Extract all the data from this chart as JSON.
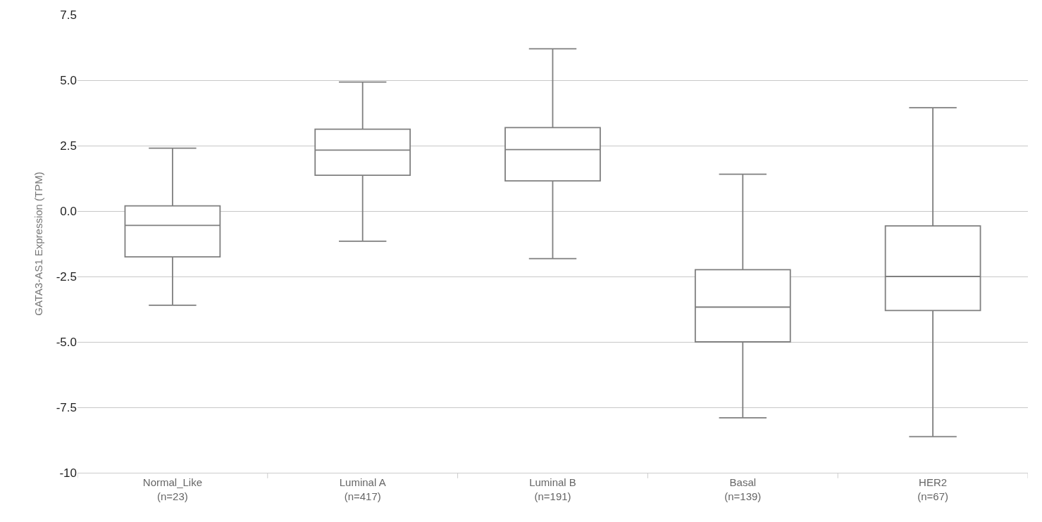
{
  "chart_data": {
    "type": "box",
    "ylabel": "GATA3-AS1 Expression (TPM)",
    "categories": [
      "Normal_Like\n(n=23)",
      "Luminal A\n(n=417)",
      "Luminal B\n(n=191)",
      "Basal\n(n=139)",
      "HER2\n(n=67)"
    ],
    "boxes": [
      {
        "low": -3.6,
        "q1": -1.75,
        "median": -0.55,
        "q3": 0.2,
        "high": 2.4
      },
      {
        "low": -1.15,
        "q1": 1.37,
        "median": 2.33,
        "q3": 3.13,
        "high": 4.93
      },
      {
        "low": -1.82,
        "q1": 1.15,
        "median": 2.35,
        "q3": 3.19,
        "high": 6.2
      },
      {
        "low": -7.9,
        "q1": -5.0,
        "median": -3.67,
        "q3": -2.24,
        "high": 1.41
      },
      {
        "low": -8.62,
        "q1": -3.8,
        "median": -2.5,
        "q3": -0.57,
        "high": 3.95
      }
    ],
    "color": "#7f7f7f",
    "ylim": [
      -10,
      7.5
    ],
    "yticks": [
      {
        "value": -10,
        "label": "-10"
      },
      {
        "value": -7.5,
        "label": "-7.5"
      },
      {
        "value": -5,
        "label": "-5.0"
      },
      {
        "value": -2.5,
        "label": "-2.5"
      },
      {
        "value": 0,
        "label": "0.0"
      },
      {
        "value": 2.5,
        "label": "2.5"
      },
      {
        "value": 5,
        "label": "5.0"
      },
      {
        "value": 7.5,
        "label": "7.5"
      }
    ],
    "grid": "y"
  }
}
